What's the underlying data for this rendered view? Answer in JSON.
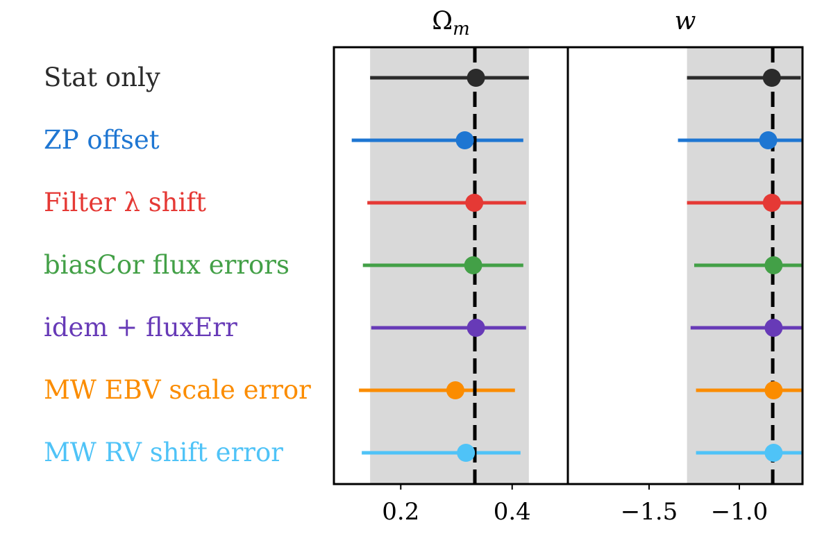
{
  "chart_data": [
    {
      "type": "scatter",
      "panel": "Omega_m",
      "title": "Ωm",
      "xlim": [
        0.08,
        0.5
      ],
      "xticks": [
        0.2,
        0.4
      ],
      "xticklabels": [
        "0.2",
        "0.4"
      ],
      "reference_value": 0.333,
      "band": [
        0.145,
        0.43
      ],
      "categories": [
        "Stat only",
        "ZP offset",
        "Filter λ shift",
        "biasCor flux errors",
        "idem + fluxErr",
        "MW EBV scale error",
        "MW RV shift error"
      ],
      "values": [
        0.335,
        0.315,
        0.332,
        0.33,
        0.335,
        0.298,
        0.317
      ],
      "err_low": [
        0.145,
        0.112,
        0.14,
        0.132,
        0.147,
        0.125,
        0.13
      ],
      "err_high": [
        0.43,
        0.42,
        0.425,
        0.42,
        0.425,
        0.405,
        0.415
      ],
      "grid": false
    },
    {
      "type": "scatter",
      "panel": "w",
      "title": "w",
      "xlim": [
        -1.95,
        -0.65
      ],
      "xticks": [
        -1.5,
        -1.0
      ],
      "xticklabels": [
        "−1.5",
        "−1.0"
      ],
      "reference_value": -0.815,
      "band": [
        -1.29,
        -0.65
      ],
      "categories": [
        "Stat only",
        "ZP offset",
        "Filter λ shift",
        "biasCor flux errors",
        "idem + fluxErr",
        "MW EBV scale error",
        "MW RV shift error"
      ],
      "values": [
        -0.82,
        -0.84,
        -0.82,
        -0.81,
        -0.81,
        -0.81,
        -0.81
      ],
      "err_low": [
        -1.29,
        -1.34,
        -1.29,
        -1.25,
        -1.27,
        -1.24,
        -1.24
      ],
      "err_high": [
        -0.66,
        -0.65,
        -0.65,
        -0.65,
        -0.65,
        -0.65,
        -0.65
      ],
      "grid": false
    }
  ],
  "rows": [
    {
      "label": "Stat only",
      "color": "#2b2b2b"
    },
    {
      "label": "ZP offset",
      "color": "#1e76d2"
    },
    {
      "label": "Filter λ shift",
      "color": "#e53935"
    },
    {
      "label": "biasCor flux errors",
      "color": "#43a047"
    },
    {
      "label": "idem + fluxErr",
      "color": "#673ab7"
    },
    {
      "label": "MW EBV scale error",
      "color": "#fb8c00"
    },
    {
      "label": "MW RV shift error",
      "color": "#4fc3f7"
    }
  ],
  "colors": {
    "band": "#d9d9d9",
    "reference_line": "#000000",
    "axes": "#000000"
  }
}
